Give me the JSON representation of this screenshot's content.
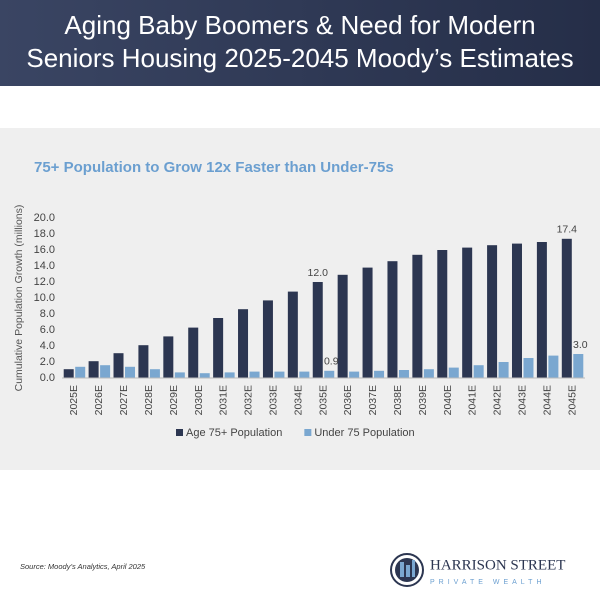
{
  "header": {
    "title_lines": [
      "Aging Baby Boomers & Need for Modern",
      "Seniors Housing 2025-2045 Moody’s Estimates"
    ]
  },
  "chart_data": {
    "type": "bar",
    "title": "75+ Population to Grow 12x Faster than Under-75s",
    "ylabel": "Cumulative Population Growth (millions)",
    "categories": [
      "2025E",
      "2026E",
      "2027E",
      "2028E",
      "2029E",
      "2030E",
      "2031E",
      "2032E",
      "2033E",
      "2034E",
      "2035E",
      "2036E",
      "2037E",
      "2038E",
      "2039E",
      "2040E",
      "2041E",
      "2042E",
      "2043E",
      "2044E",
      "2045E"
    ],
    "series": [
      {
        "name": "Age 75+ Population",
        "color": "#2c3651",
        "values": [
          1.1,
          2.1,
          3.1,
          4.1,
          5.2,
          6.3,
          7.5,
          8.6,
          9.7,
          10.8,
          12.0,
          12.9,
          13.8,
          14.6,
          15.4,
          16.0,
          16.3,
          16.6,
          16.8,
          17.0,
          17.4
        ],
        "value_labels": [
          null,
          null,
          null,
          null,
          null,
          null,
          null,
          null,
          null,
          null,
          "12.0",
          null,
          null,
          null,
          null,
          null,
          null,
          null,
          null,
          null,
          "17.4"
        ]
      },
      {
        "name": "Under 75 Population",
        "color": "#7aa7d0",
        "values": [
          1.4,
          1.6,
          1.4,
          1.1,
          0.7,
          0.6,
          0.7,
          0.8,
          0.8,
          0.8,
          0.9,
          0.8,
          0.9,
          1.0,
          1.1,
          1.3,
          1.6,
          2.0,
          2.5,
          2.8,
          3.0
        ],
        "value_labels": [
          null,
          null,
          null,
          null,
          null,
          null,
          null,
          null,
          null,
          null,
          "0.9",
          null,
          null,
          null,
          null,
          null,
          null,
          null,
          null,
          null,
          "3.0"
        ]
      }
    ],
    "ylim": [
      0,
      20
    ],
    "yticks": [
      {
        "value": 0,
        "label": "0.0"
      },
      {
        "value": 2,
        "label": "2.0"
      },
      {
        "value": 4,
        "label": "4.0"
      },
      {
        "value": 6,
        "label": "6.0"
      },
      {
        "value": 8,
        "label": "8.0"
      },
      {
        "value": 10,
        "label": "10.0"
      },
      {
        "value": 12,
        "label": "12.0"
      },
      {
        "value": 14,
        "label": "14.0"
      },
      {
        "value": 16,
        "label": "16.0"
      },
      {
        "value": 18,
        "label": "18.0"
      },
      {
        "value": 20,
        "label": "20.0"
      }
    ],
    "legend": "bottom"
  },
  "source": "Source: Moody’s Analytics, April 2025",
  "logo": {
    "name": "HARRISON STREET",
    "tagline": "PRIVATE WEALTH"
  }
}
